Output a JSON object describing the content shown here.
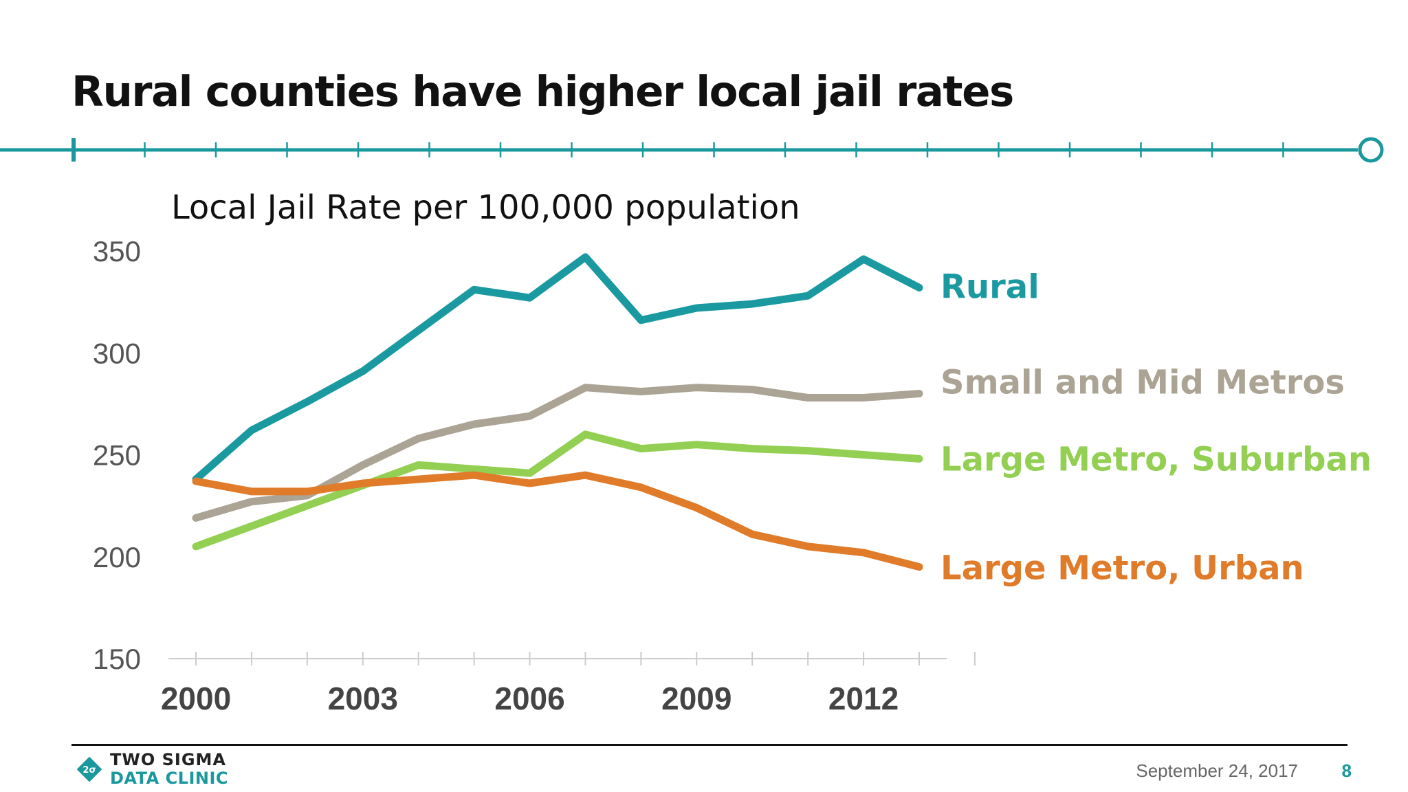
{
  "slide": {
    "title": "Rural counties have higher local jail rates",
    "date": "September 24, 2017",
    "page_number": "8",
    "logo": {
      "line1": "TWO SIGMA",
      "line2": "DATA CLINIC",
      "mark_text": "2σ"
    },
    "colors": {
      "accent": "#19989e",
      "text": "#111111"
    }
  },
  "chart_data": {
    "type": "line",
    "title": "Local Jail Rate per 100,000 population",
    "xlabel": "",
    "ylabel": "",
    "x": [
      2000,
      2001,
      2002,
      2003,
      2004,
      2005,
      2006,
      2007,
      2008,
      2009,
      2010,
      2011,
      2012,
      2013
    ],
    "x_tick_labels": [
      "2000",
      "2003",
      "2006",
      "2009",
      "2012"
    ],
    "y_ticks": [
      150,
      200,
      250,
      300,
      350
    ],
    "ylim": [
      150,
      350
    ],
    "grid": false,
    "legend": "inline-right",
    "series": [
      {
        "name": "Rural",
        "color": "#1a9aa0",
        "values": [
          238,
          262,
          276,
          291,
          311,
          331,
          327,
          347,
          316,
          322,
          324,
          328,
          346,
          332
        ]
      },
      {
        "name": "Small and Mid Metros",
        "color": "#aba495",
        "values": [
          219,
          227,
          230,
          245,
          258,
          265,
          269,
          283,
          281,
          283,
          282,
          278,
          278,
          280
        ]
      },
      {
        "name": "Large Metro, Suburban",
        "color": "#92cf52",
        "values": [
          205,
          215,
          225,
          235,
          245,
          243,
          241,
          260,
          253,
          255,
          253,
          252,
          250,
          248
        ]
      },
      {
        "name": "Large Metro, Urban",
        "color": "#e07b2a",
        "values": [
          237,
          232,
          232,
          236,
          238,
          240,
          236,
          240,
          234,
          224,
          211,
          205,
          202,
          195
        ]
      }
    ]
  }
}
